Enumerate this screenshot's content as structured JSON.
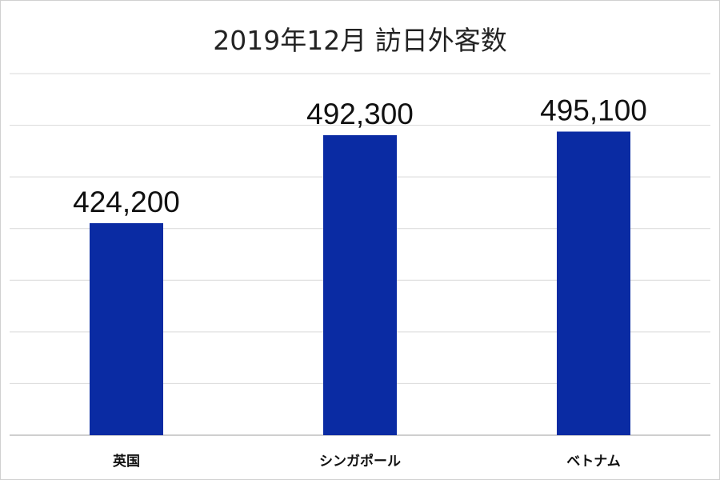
{
  "chart_data": {
    "type": "bar",
    "title": "2019年12月 訪日外客数",
    "categories": [
      "英国",
      "シンガポール",
      "ベトナム"
    ],
    "values": [
      424200,
      492300,
      495100
    ],
    "data_labels": [
      "424,200",
      "492,300",
      "495,100"
    ],
    "xlabel": "",
    "ylabel": "",
    "ylim": [
      260000,
      540000
    ],
    "grid": true,
    "legend": "none",
    "colors": {
      "bar": "#0a2ba3",
      "grid": "#d9d9d9",
      "axis": "#bfbfbf"
    }
  }
}
